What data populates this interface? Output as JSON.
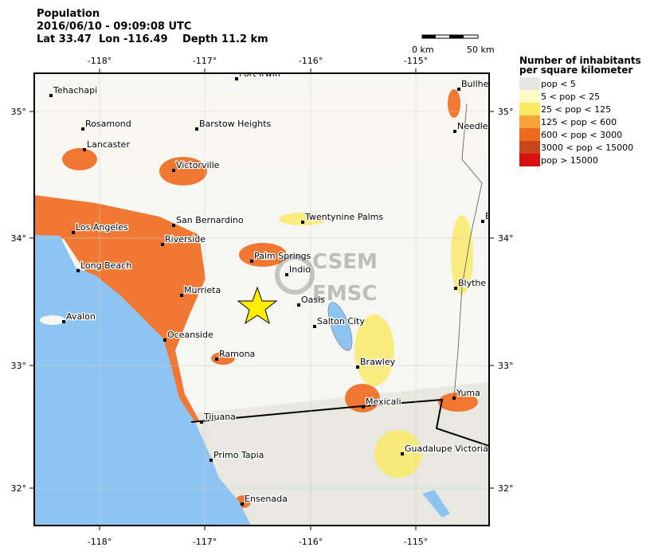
{
  "header": {
    "title": "Population",
    "datetime": "2016/06/10 - 09:09:08 UTC",
    "lat": "Lat 33.47",
    "lon": "Lon -116.49",
    "depth": "Depth  11.2 km"
  },
  "scale": {
    "start": "0 km",
    "end": "50 km"
  },
  "lon_ticks": [
    "-118°",
    "-117°",
    "-116°",
    "-115°"
  ],
  "lat_ticks": [
    "35°",
    "34°",
    "33°",
    "32°"
  ],
  "cities": [
    "Fort Irwin",
    "Tehachapi",
    "Bullhe",
    "Rosamond",
    "Barstow Heights",
    "Needle",
    "Lancaster",
    "Victorville",
    "Twentynine Palms",
    "B",
    "San Bernardino",
    "Los Angeles",
    "Riverside",
    "Palm Springs",
    "Indio",
    "Long Beach",
    "Blythe",
    "Murrieta",
    "Oasis",
    "Avalon",
    "Salton City",
    "Oceanside",
    "Ramona",
    "Brawley",
    "Yuma",
    "Mexicali",
    "Tijuana",
    "Guadalupe Victoria",
    "Primo Tapia",
    "Ensenada"
  ],
  "logo": {
    "top": "CSEM",
    "bottom": "EMSC"
  },
  "legend": {
    "title_1": "Number of inhabitants",
    "title_2": "per square kilometer",
    "items": [
      {
        "label": "pop < 5",
        "color": "#e6e6e2"
      },
      {
        "label": "5 < pop < 25",
        "color": "#fdfbc4"
      },
      {
        "label": "25 < pop < 125",
        "color": "#fbe862"
      },
      {
        "label": "125 < pop < 600",
        "color": "#f7a33a"
      },
      {
        "label": "600 < pop < 3000",
        "color": "#ef6a1e"
      },
      {
        "label": "3000 < pop < 15000",
        "color": "#c8481b"
      },
      {
        "label": "pop > 15000",
        "color": "#d81010"
      }
    ]
  }
}
